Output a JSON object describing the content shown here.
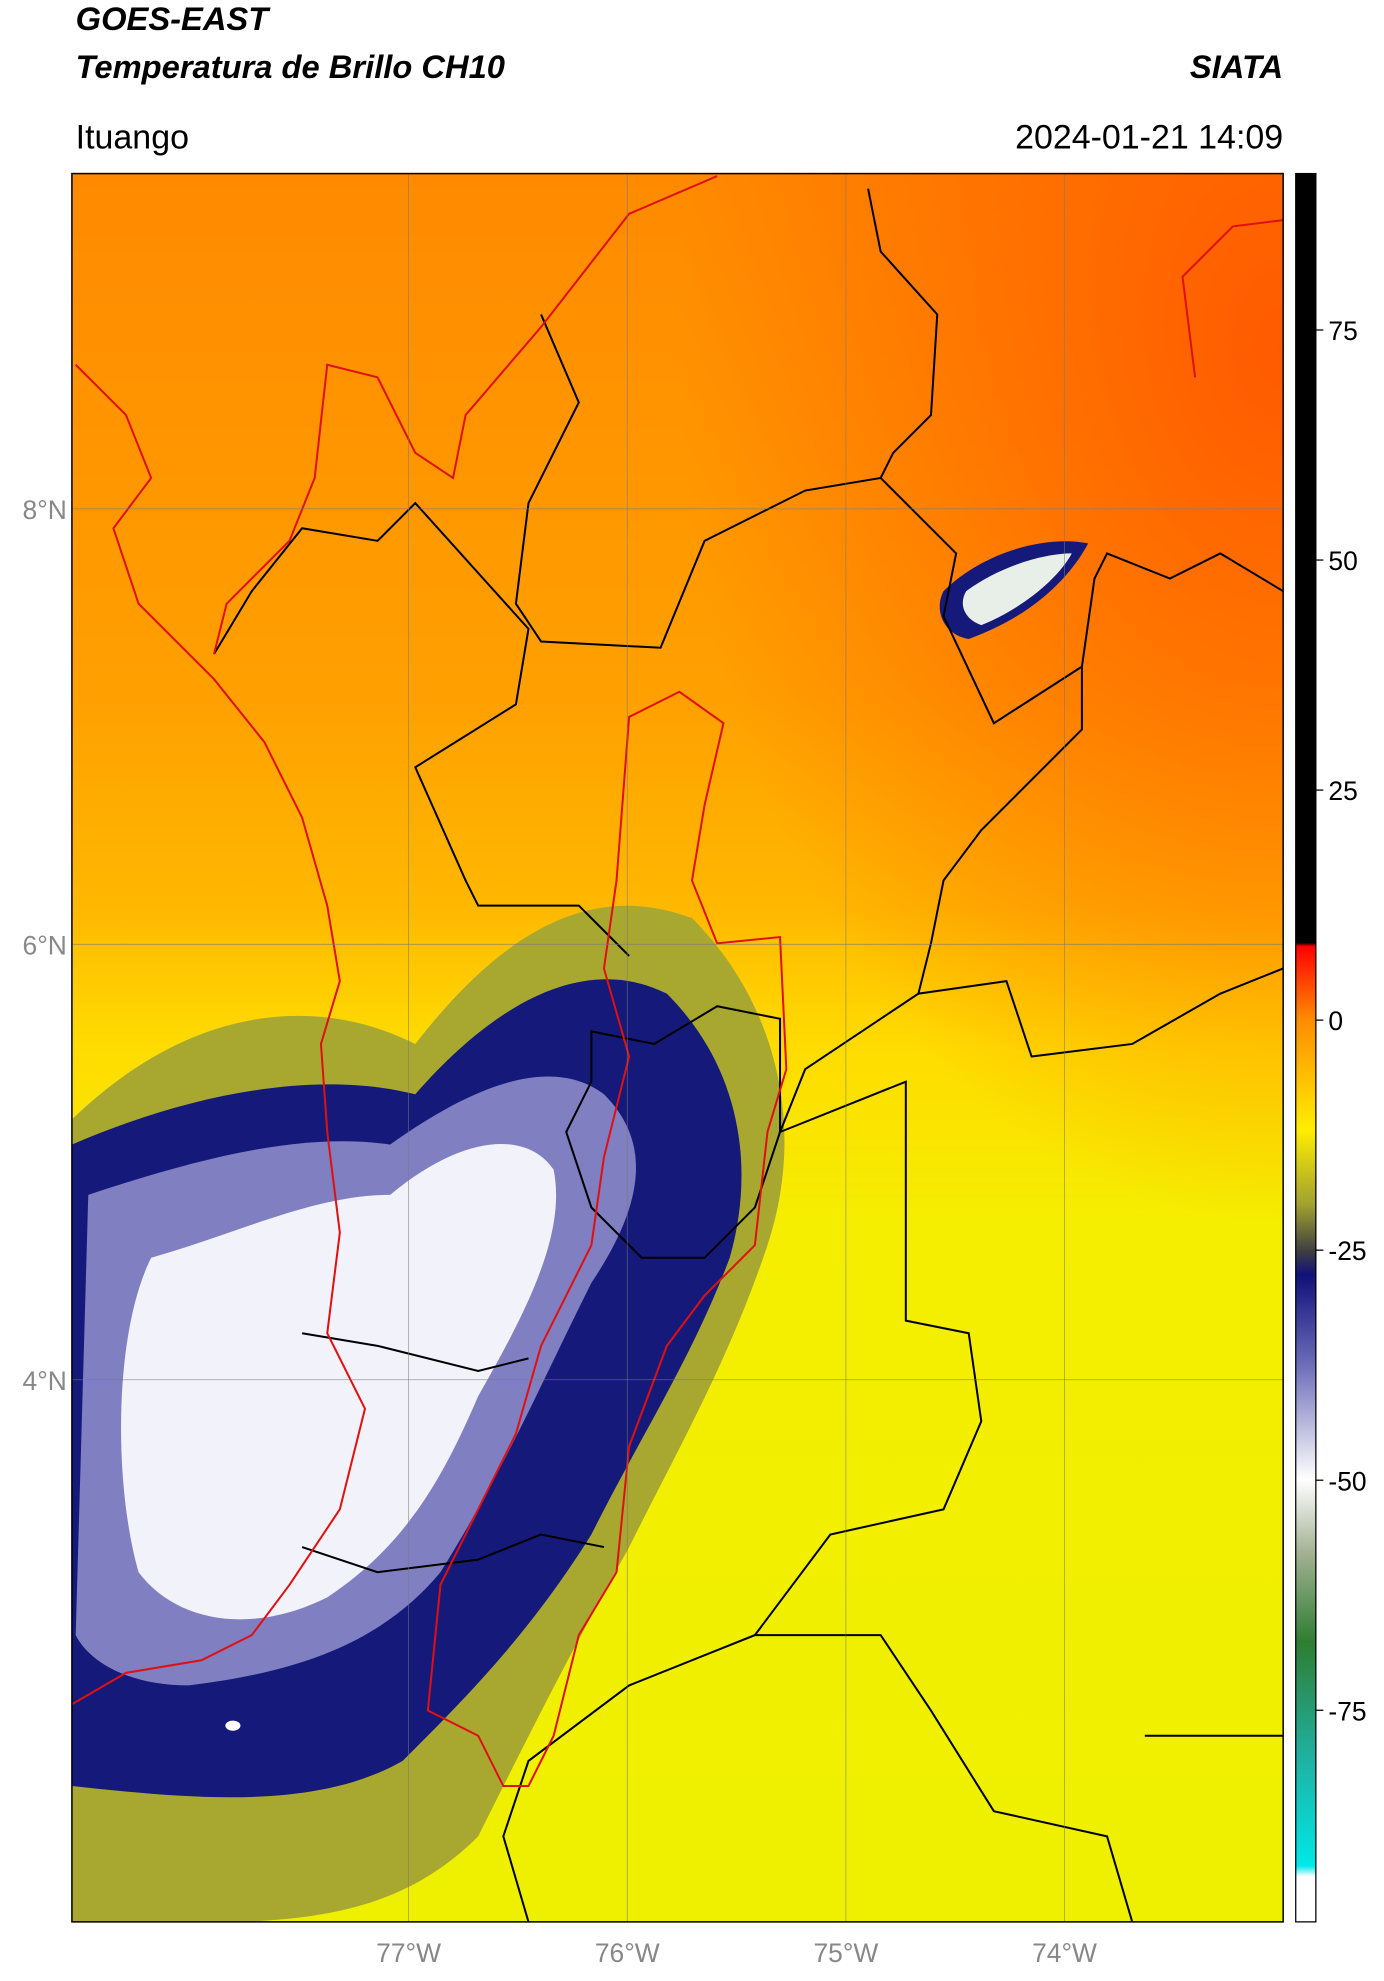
{
  "header": {
    "title": "GOES-EAST",
    "subtitle": "Temperatura de Brillo CH10",
    "source": "SIATA",
    "location": "Ituango",
    "datetime": "2024-01-21 14:09"
  },
  "map": {
    "lon_range": [
      -78.54,
      -73.0
    ],
    "lat_range": [
      1.51,
      9.54
    ],
    "lon_ticks": [
      {
        "value": -77,
        "label": "77°W"
      },
      {
        "value": -76,
        "label": "76°W"
      },
      {
        "value": -75,
        "label": "75°W"
      },
      {
        "value": -74,
        "label": "74°W"
      }
    ],
    "lat_ticks": [
      {
        "value": 8,
        "label": "8°N"
      },
      {
        "value": 6,
        "label": "6°N"
      },
      {
        "value": 4,
        "label": "4°N"
      }
    ],
    "grid": true
  },
  "colorbar": {
    "range": [
      -98,
      92
    ],
    "ticks": [
      75,
      50,
      25,
      0,
      -25,
      -50,
      -75
    ]
  }
}
